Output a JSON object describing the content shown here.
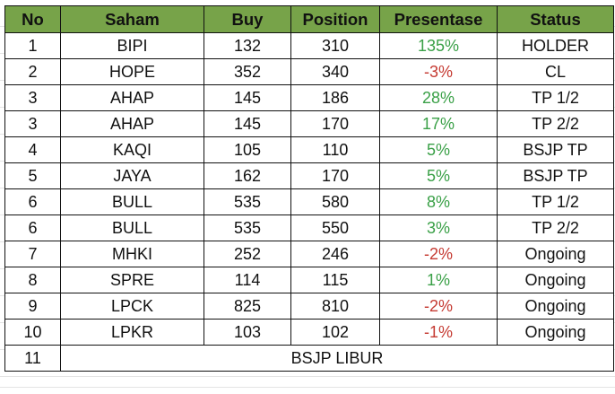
{
  "headers": [
    "No",
    "Saham",
    "Buy",
    "Position",
    "Presentase",
    "Status"
  ],
  "rows": [
    {
      "no": "1",
      "saham": "BIPI",
      "buy": "132",
      "position": "310",
      "presentase": "135%",
      "status": "HOLDER",
      "trend": "pos"
    },
    {
      "no": "2",
      "saham": "HOPE",
      "buy": "352",
      "position": "340",
      "presentase": "-3%",
      "status": "CL",
      "trend": "neg"
    },
    {
      "no": "3",
      "saham": "AHAP",
      "buy": "145",
      "position": "186",
      "presentase": "28%",
      "status": "TP 1/2",
      "trend": "pos"
    },
    {
      "no": "3",
      "saham": "AHAP",
      "buy": "145",
      "position": "170",
      "presentase": "17%",
      "status": "TP 2/2",
      "trend": "pos"
    },
    {
      "no": "4",
      "saham": "KAQI",
      "buy": "105",
      "position": "110",
      "presentase": "5%",
      "status": "BSJP TP",
      "trend": "pos"
    },
    {
      "no": "5",
      "saham": "JAYA",
      "buy": "162",
      "position": "170",
      "presentase": "5%",
      "status": "BSJP TP",
      "trend": "pos"
    },
    {
      "no": "6",
      "saham": "BULL",
      "buy": "535",
      "position": "580",
      "presentase": "8%",
      "status": "TP 1/2",
      "trend": "pos"
    },
    {
      "no": "6",
      "saham": "BULL",
      "buy": "535",
      "position": "550",
      "presentase": "3%",
      "status": "TP 2/2",
      "trend": "pos"
    },
    {
      "no": "7",
      "saham": "MHKI",
      "buy": "252",
      "position": "246",
      "presentase": "-2%",
      "status": "Ongoing",
      "trend": "neg"
    },
    {
      "no": "8",
      "saham": "SPRE",
      "buy": "114",
      "position": "115",
      "presentase": "1%",
      "status": "Ongoing",
      "trend": "pos"
    },
    {
      "no": "9",
      "saham": "LPCK",
      "buy": "825",
      "position": "810",
      "presentase": "-2%",
      "status": "Ongoing",
      "trend": "neg"
    },
    {
      "no": "10",
      "saham": "LPKR",
      "buy": "103",
      "position": "102",
      "presentase": "-1%",
      "status": "Ongoing",
      "trend": "neg"
    }
  ],
  "final_row": {
    "no": "11",
    "text": "BSJP LIBUR"
  },
  "colors": {
    "header_bg": "#77a349",
    "positive": "#3aa047",
    "negative": "#c53a32",
    "border": "#111111"
  }
}
